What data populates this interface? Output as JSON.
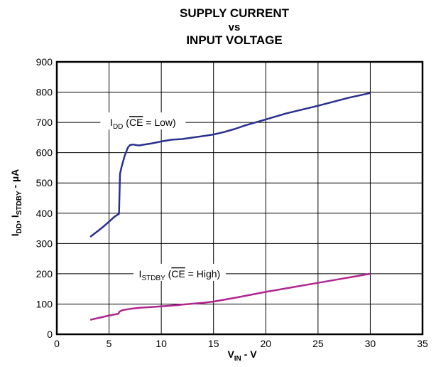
{
  "chart_data": {
    "type": "line",
    "title_lines": [
      "SUPPLY CURRENT",
      "vs",
      "INPUT VOLTAGE"
    ],
    "xlabel": {
      "main": "V",
      "sub": "IN",
      "suffix": " - V"
    },
    "ylabel": {
      "p1": "I",
      "s1": "DD",
      "p2": ", I",
      "s2": "STDBY",
      "suffix": " - µA"
    },
    "xlim": [
      0,
      35
    ],
    "ylim": [
      0,
      900
    ],
    "xticks": [
      0,
      5,
      10,
      15,
      20,
      25,
      30,
      35
    ],
    "yticks": [
      0,
      100,
      200,
      300,
      400,
      500,
      600,
      700,
      800,
      900
    ],
    "grid": true,
    "colors": {
      "idd": "#2a2f8e",
      "istdby": "#b0268f"
    },
    "series": [
      {
        "name": "IDD (CE = Low)",
        "label": {
          "main": "I",
          "sub": "DD",
          "open": " (",
          "over": "CE",
          "rest": " = Low)"
        },
        "color": "#2a2f8e",
        "x": [
          3.2,
          3.5,
          4.0,
          4.5,
          5.0,
          5.5,
          5.95,
          6.05,
          6.2,
          6.5,
          6.8,
          7.0,
          7.3,
          7.6,
          7.9,
          8.2,
          9.0,
          10.0,
          11.0,
          12.0,
          13.0,
          14.0,
          15.0,
          16.0,
          17.0,
          18.0,
          20.0,
          22.0,
          25.0,
          28.0,
          30.0
        ],
        "y": [
          322,
          330,
          343,
          357,
          372,
          388,
          398,
          530,
          553,
          590,
          617,
          625,
          627,
          625,
          624,
          626,
          630,
          637,
          643,
          645,
          650,
          655,
          660,
          668,
          678,
          690,
          710,
          730,
          755,
          782,
          797
        ]
      },
      {
        "name": "ISTDBY (CE = High)",
        "label": {
          "main": "I",
          "sub": "STDBY",
          "open": " (",
          "over": "CE",
          "rest": " = High)"
        },
        "color": "#b0268f",
        "x": [
          3.2,
          4.0,
          5.0,
          5.9,
          6.0,
          6.3,
          7.0,
          8.0,
          9.0,
          10.0,
          11.0,
          12.0,
          13.0,
          14.0,
          15.0,
          17.0,
          20.0,
          22.5,
          25.0,
          27.5,
          30.0
        ],
        "y": [
          48,
          54,
          62,
          68,
          75,
          80,
          84,
          88,
          90,
          92,
          95,
          98,
          101,
          104,
          108,
          120,
          140,
          155,
          170,
          185,
          200
        ]
      }
    ]
  }
}
